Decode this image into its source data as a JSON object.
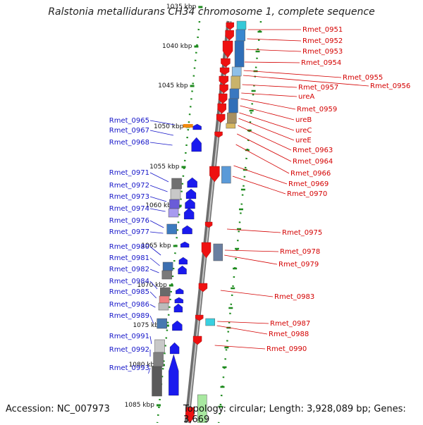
{
  "title": "Ralstonia metallidurans CH34 chromosome 1, complete sequence",
  "footer": {
    "accession": "Accession: NC_007973",
    "summary": "Topology: circular; Length: 3,928,089 bp; Genes: 3,669"
  },
  "scale": {
    "ticks": [
      "1035 kbp",
      "1040 kbp",
      "1045 kbp",
      "1050 kbp",
      "1055 kbp",
      "1060 kbp",
      "1065 kbp",
      "1070 kbp",
      "1075 kbp",
      "1080 kbp",
      "1085 kbp"
    ]
  },
  "colors": {
    "forward": "#1a1aee",
    "reverse": "#ee1111",
    "backbone": "#888888",
    "ruler": "#1d8a1d",
    "label_left": "#1515c8",
    "label_right": "#d40000"
  },
  "genes_left": [
    "Rmet_0965",
    "Rmet_0967",
    "Rmet_0968",
    "Rmet_0971",
    "Rmet_0972",
    "Rmet_0973",
    "Rmet_0974",
    "Rmet_0976",
    "Rmet_0977",
    "Rmet_0980",
    "Rmet_0981",
    "Rmet_0982",
    "Rmet_0984",
    "Rmet_0985",
    "Rmet_0986",
    "Rmet_0989",
    "Rmet_0991",
    "Rmet_0992",
    "Rmet_0993"
  ],
  "genes_right": [
    "Rmet_0951",
    "Rmet_0952",
    "Rmet_0953",
    "Rmet_0954",
    "Rmet_0955",
    "Rmet_0956",
    "Rmet_0957",
    "ureA",
    "Rmet_0959",
    "ureB",
    "ureC",
    "ureE",
    "Rmet_0963",
    "Rmet_0964",
    "Rmet_0966",
    "Rmet_0969",
    "Rmet_0970",
    "Rmet_0975",
    "Rmet_0978",
    "Rmet_0979",
    "Rmet_0983",
    "Rmet_0987",
    "Rmet_0988",
    "Rmet_0990"
  ]
}
